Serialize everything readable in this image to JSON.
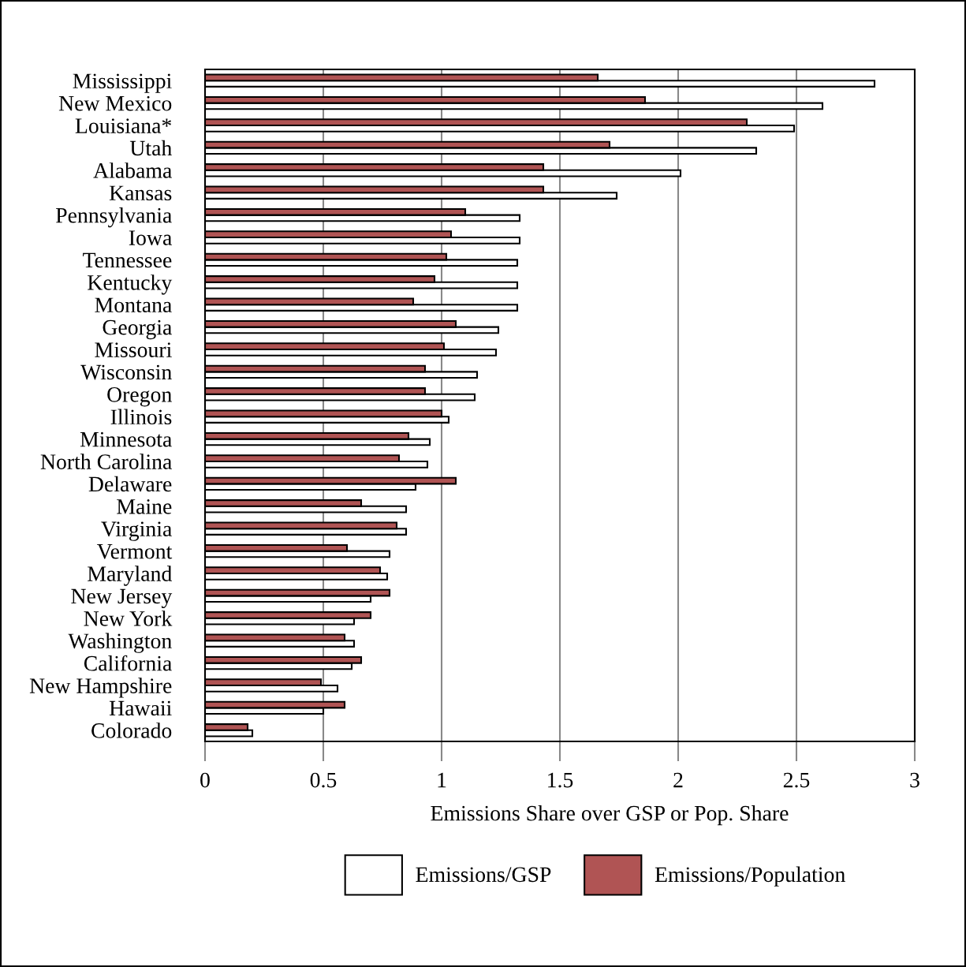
{
  "chart_data": {
    "type": "bar",
    "orientation": "horizontal",
    "xlabel": "Emissions Share over GSP or Pop. Share",
    "categories": [
      "Mississippi",
      "New Mexico",
      "Louisiana*",
      "Utah",
      "Alabama",
      "Kansas",
      "Pennsylvania",
      "Iowa",
      "Tennessee",
      "Kentucky",
      "Montana",
      "Georgia",
      "Missouri",
      "Wisconsin",
      "Oregon",
      "Illinois",
      "Minnesota",
      "North Carolina",
      "Delaware",
      "Maine",
      "Virginia",
      "Vermont",
      "Maryland",
      "New Jersey",
      "New York",
      "Washington",
      "California",
      "New Hampshire",
      "Hawaii",
      "Colorado"
    ],
    "series": [
      {
        "name": "Emissions/GSP",
        "color": "#ffffff",
        "values": [
          2.83,
          2.61,
          2.49,
          2.33,
          2.01,
          1.74,
          1.33,
          1.33,
          1.32,
          1.32,
          1.32,
          1.24,
          1.23,
          1.15,
          1.14,
          1.03,
          0.95,
          0.94,
          0.89,
          0.85,
          0.85,
          0.78,
          0.77,
          0.7,
          0.63,
          0.63,
          0.62,
          0.56,
          0.5,
          0.2
        ]
      },
      {
        "name": "Emissions/Population",
        "color": "#b05454",
        "values": [
          1.66,
          1.86,
          2.29,
          1.71,
          1.43,
          1.43,
          1.1,
          1.04,
          1.02,
          0.97,
          0.88,
          1.06,
          1.01,
          0.93,
          0.93,
          1.0,
          0.86,
          0.82,
          1.06,
          0.66,
          0.81,
          0.6,
          0.74,
          0.78,
          0.7,
          0.59,
          0.66,
          0.49,
          0.59,
          0.18
        ]
      }
    ],
    "xlim": [
      0,
      3
    ],
    "xticks": [
      0,
      0.5,
      1,
      1.5,
      2,
      2.5,
      3
    ],
    "grid": "x",
    "legend": "bottom"
  }
}
